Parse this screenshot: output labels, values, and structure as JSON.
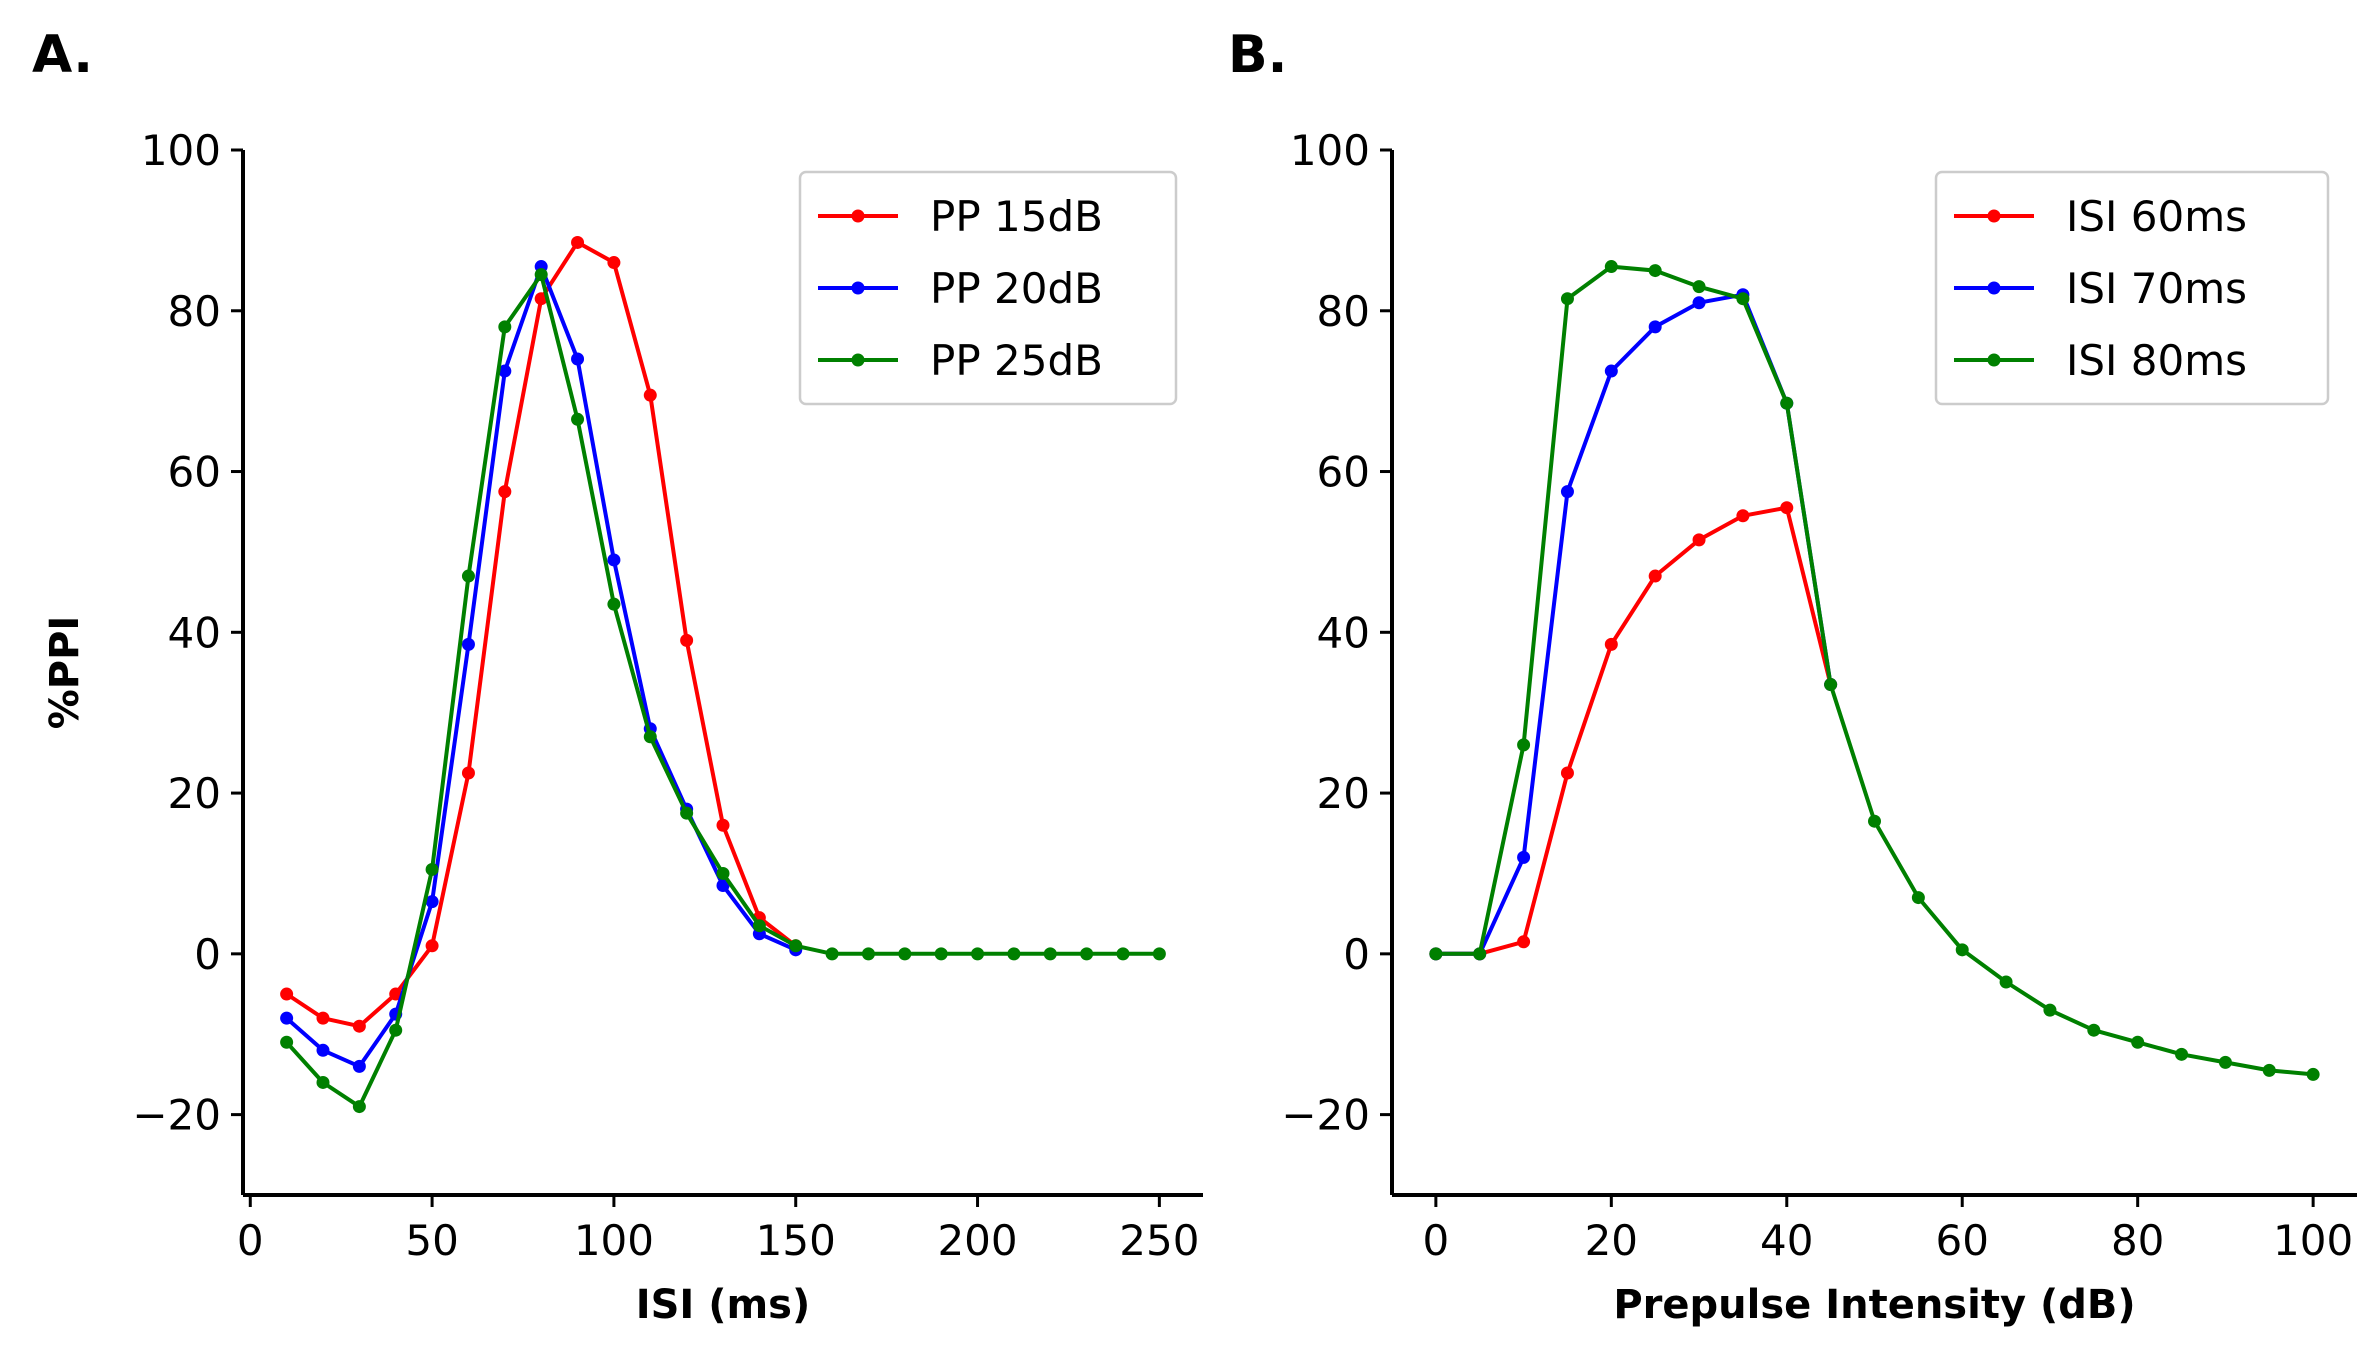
{
  "chart_data": [
    {
      "panel": "A.",
      "type": "line",
      "xlabel": "ISI (ms)",
      "ylabel": "%PPI",
      "xlim": [
        -2,
        262
      ],
      "ylim": [
        -30,
        100
      ],
      "xticks": [
        0,
        50,
        100,
        150,
        200,
        250
      ],
      "yticks": [
        -20,
        0,
        20,
        40,
        60,
        80,
        100
      ],
      "ytick_labels": [
        "−20",
        "0",
        "20",
        "40",
        "60",
        "80",
        "100"
      ],
      "legend_position": "top-right",
      "grid": false,
      "series": [
        {
          "name": "PP 15dB",
          "color": "#ff0000",
          "x": [
            10,
            20,
            30,
            40,
            50,
            60,
            70,
            80,
            90,
            100,
            110,
            120,
            130,
            140,
            150
          ],
          "y": [
            -5,
            -8,
            -9,
            -5,
            1,
            22.5,
            57.5,
            81.5,
            88.5,
            86,
            69.5,
            39,
            16,
            4.5,
            1
          ]
        },
        {
          "name": "PP 20dB",
          "color": "#0000ff",
          "x": [
            10,
            20,
            30,
            40,
            50,
            60,
            70,
            80,
            90,
            100,
            110,
            120,
            130,
            140,
            150
          ],
          "y": [
            -8,
            -12,
            -14,
            -7.5,
            6.5,
            38.5,
            72.5,
            85.5,
            74,
            49,
            28,
            18,
            8.5,
            2.5,
            0.5
          ]
        },
        {
          "name": "PP 25dB",
          "color": "#008000",
          "x": [
            10,
            20,
            30,
            40,
            50,
            60,
            70,
            80,
            90,
            100,
            110,
            120,
            130,
            140,
            150,
            160,
            170,
            180,
            190,
            200,
            210,
            220,
            230,
            240,
            250
          ],
          "y": [
            -11,
            -16,
            -19,
            -9.5,
            10.5,
            47,
            78,
            84.5,
            66.5,
            43.5,
            27,
            17.5,
            10,
            3.5,
            1,
            0,
            0,
            0,
            0,
            0,
            0,
            0,
            0,
            0,
            0
          ]
        }
      ]
    },
    {
      "panel": "B.",
      "type": "line",
      "xlabel": "Prepulse Intensity (dB)",
      "ylabel": "",
      "xlim": [
        -5,
        105
      ],
      "ylim": [
        -30,
        100
      ],
      "xticks": [
        0,
        20,
        40,
        60,
        80,
        100
      ],
      "yticks": [
        -20,
        0,
        20,
        40,
        60,
        80,
        100
      ],
      "ytick_labels": [
        "−20",
        "0",
        "20",
        "40",
        "60",
        "80",
        "100"
      ],
      "legend_position": "top-right",
      "grid": false,
      "series": [
        {
          "name": "ISI 60ms",
          "color": "#ff0000",
          "x": [
            0,
            5,
            10,
            15,
            20,
            25,
            30,
            35,
            40,
            45
          ],
          "y": [
            0,
            0,
            1.5,
            22.5,
            38.5,
            47,
            51.5,
            54.5,
            55.5,
            33.5
          ]
        },
        {
          "name": "ISI 70ms",
          "color": "#0000ff",
          "x": [
            0,
            5,
            10,
            15,
            20,
            25,
            30,
            35,
            40,
            45
          ],
          "y": [
            0,
            0,
            12,
            57.5,
            72.5,
            78,
            81,
            82,
            68.5,
            33.5
          ]
        },
        {
          "name": "ISI 80ms",
          "color": "#008000",
          "x": [
            0,
            5,
            10,
            15,
            20,
            25,
            30,
            35,
            40,
            45,
            50,
            55,
            60,
            65,
            70,
            75,
            80,
            85,
            90,
            95,
            100
          ],
          "y": [
            0,
            0,
            26,
            81.5,
            85.5,
            85,
            83,
            81.5,
            68.5,
            33.5,
            16.5,
            7,
            0.5,
            -3.5,
            -7,
            -9.5,
            -11,
            -12.5,
            -13.5,
            -14.5,
            -15
          ]
        }
      ]
    }
  ]
}
